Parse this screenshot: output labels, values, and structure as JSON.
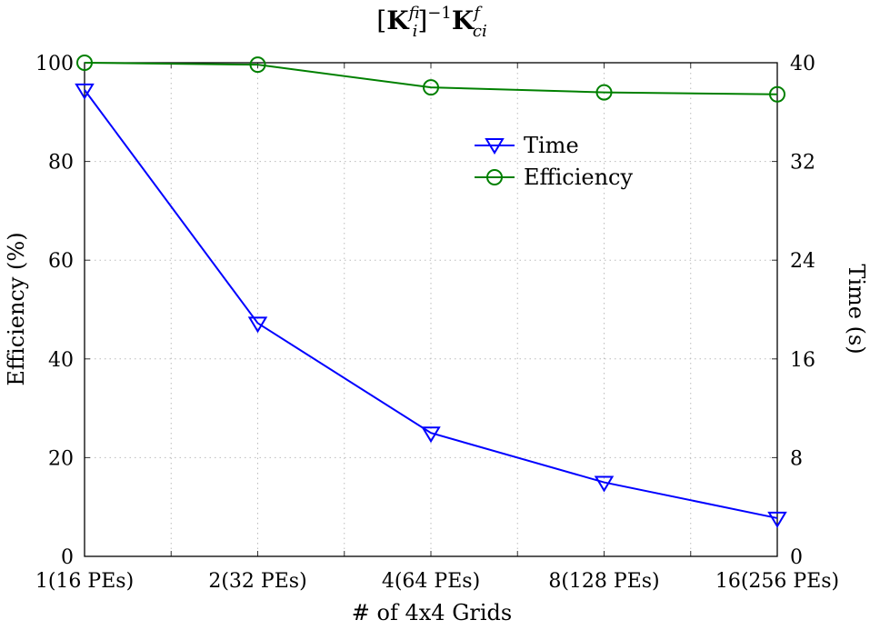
{
  "chart_data": {
    "type": "line",
    "title": "[K_ii^f]^-1 K_ci^f",
    "title_parts": {
      "open": "[",
      "K1": "K",
      "sup1": "f",
      "sub1": "ii",
      "close": "]",
      "exp": "−1",
      "K2": "K",
      "sup2": "f",
      "sub2": "ci"
    },
    "xlabel": "# of 4x4 Grids",
    "ylabel_left": "Efficiency (%)",
    "ylabel_right": "Time (s)",
    "categories": [
      "1(16 PEs)",
      "2(32 PEs)",
      "4(64 PEs)",
      "8(128 PEs)",
      "16(256 PEs)"
    ],
    "ylim_left": [
      0,
      100
    ],
    "ylim_right": [
      0,
      40
    ],
    "yticks_left": [
      "0",
      "20",
      "40",
      "60",
      "80",
      "100"
    ],
    "yticks_right": [
      "0",
      "8",
      "16",
      "24",
      "32",
      "40"
    ],
    "grid": true,
    "legend_position": "top-center",
    "series": [
      {
        "name": "Time",
        "axis": "right",
        "color": "#0000ff",
        "marker": "triangle-down",
        "values": [
          37.8,
          18.9,
          10.0,
          6.0,
          3.1
        ]
      },
      {
        "name": "Efficiency",
        "axis": "left",
        "color": "#008000",
        "marker": "circle",
        "values": [
          100,
          99.6,
          95.0,
          94.0,
          93.6
        ]
      }
    ]
  }
}
